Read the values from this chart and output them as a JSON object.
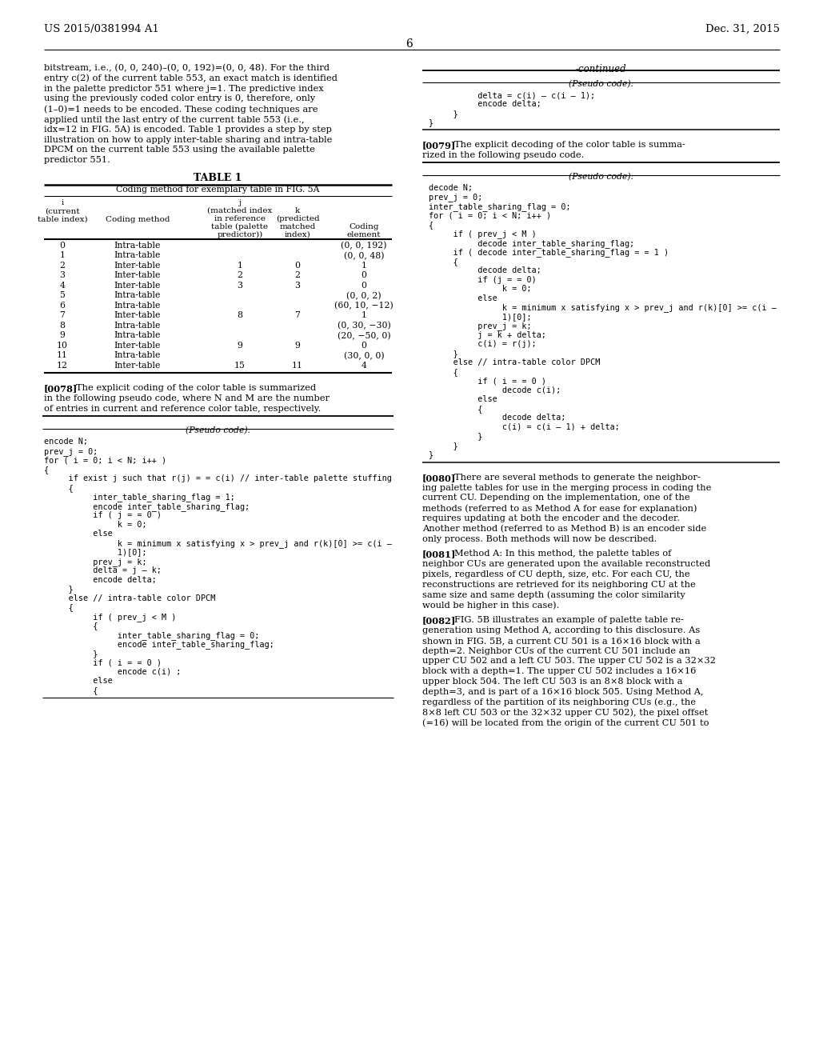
{
  "header_left": "US 2015/0381994 A1",
  "header_right": "Dec. 31, 2015",
  "page_number": "6",
  "left_col": {
    "para1_lines": [
      "bitstream, i.e., (0, 0, 240)–(0, 0, 192)=(0, 0, 48). For the third",
      "entry c(2) of the current table 553, an exact match is identified",
      "in the palette predictor 551 where j=1. The predictive index",
      "using the previously coded color entry is 0, therefore, only",
      "(1–0)=1 needs to be encoded. These coding techniques are",
      "applied until the last entry of the current table 553 (i.e.,",
      "idx=12 in FIG. 5A) is encoded. Table 1 provides a step by step",
      "illustration on how to apply inter-table sharing and intra-table",
      "DPCM on the current table 553 using the available palette",
      "predictor 551."
    ],
    "table_title": "TABLE 1",
    "table_subtitle": "Coding method for exemplary table in FIG. 5A",
    "table_data": [
      [
        "0",
        "Intra-table",
        "",
        "",
        "(0, 0, 192)"
      ],
      [
        "1",
        "Intra-table",
        "",
        "",
        "(0, 0, 48)"
      ],
      [
        "2",
        "Inter-table",
        "1",
        "0",
        "1"
      ],
      [
        "3",
        "Inter-table",
        "2",
        "2",
        "0"
      ],
      [
        "4",
        "Inter-table",
        "3",
        "3",
        "0"
      ],
      [
        "5",
        "Intra-table",
        "",
        "",
        "(0, 0, 2)"
      ],
      [
        "6",
        "Intra-table",
        "",
        "",
        "(60, 10, −12)"
      ],
      [
        "7",
        "Inter-table",
        "8",
        "7",
        "1"
      ],
      [
        "8",
        "Intra-table",
        "",
        "",
        "(0, 30, −30)"
      ],
      [
        "9",
        "Intra-table",
        "",
        "",
        "(20, −50, 0)"
      ],
      [
        "10",
        "Inter-table",
        "9",
        "9",
        "0"
      ],
      [
        "11",
        "Intra-table",
        "",
        "",
        "(30, 0, 0)"
      ],
      [
        "12",
        "Inter-table",
        "15",
        "11",
        "4"
      ]
    ],
    "para2_lines": [
      "[0078]    The explicit coding of the color table is summarized",
      "in the following pseudo code, where N and M are the number",
      "of entries in current and reference color table, respectively."
    ],
    "pseudocode1_header": "(Pseudo code):",
    "pseudocode1_lines": [
      "encode N;",
      "prev_j = 0;",
      "for ( i = 0; i < N; i++ )",
      "{",
      "     if exist j such that r(j) = = c(i) // inter-table palette stuffing",
      "     {",
      "          inter_table_sharing_flag = 1;",
      "          encode inter_table_sharing_flag;",
      "          if ( j = = 0 )",
      "               k = 0;",
      "          else",
      "               k = minimum x satisfying x > prev_j and r(k)[0] >= c(i –",
      "               1)[0];",
      "          prev_j = k;",
      "          delta = j – k;",
      "          encode delta;",
      "     }",
      "     else // intra-table color DPCM",
      "     {",
      "          if ( prev_j < M )",
      "          {",
      "               inter_table_sharing_flag = 0;",
      "               encode inter_table_sharing_flag;",
      "          }",
      "          if ( i = = 0 )",
      "               encode c(i) ;",
      "          else",
      "          {"
    ]
  },
  "right_col": {
    "continued_label": "-continued",
    "pseudocode_cont_lines": [
      "          delta = c(i) – c(i – 1);",
      "          encode delta;",
      "     }",
      "}"
    ],
    "para3_lines": [
      "[0079]    The explicit decoding of the color table is summa-",
      "rized in the following pseudo code."
    ],
    "pseudocode2_header": "(Pseudo code):",
    "pseudocode2_lines": [
      "decode N;",
      "prev_j = 0;",
      "inter_table_sharing_flag = 0;",
      "for ( i = 0; i < N; i++ )",
      "{",
      "     if ( prev_j < M )",
      "          decode inter_table_sharing_flag;",
      "     if ( decode inter_table_sharing_flag = = 1 )",
      "     {",
      "          decode delta;",
      "          if (j = = 0)",
      "               k = 0;",
      "          else",
      "               k = minimum x satisfying x > prev_j and r(k)[0] >= c(i –",
      "               1)[0];",
      "          prev_j = k;",
      "          j = k + delta;",
      "          c(i) = r(j);",
      "     }",
      "     else // intra-table color DPCM",
      "     {",
      "          if ( i = = 0 )",
      "               decode c(i);",
      "          else",
      "          {",
      "               decode delta;",
      "               c(i) = c(i – 1) + delta;",
      "          }",
      "     }",
      "}"
    ],
    "para4_lines": [
      "[0080]    There are several methods to generate the neighbor-",
      "ing palette tables for use in the merging process in coding the",
      "current CU. Depending on the implementation, one of the",
      "methods (referred to as Method A for ease for explanation)",
      "requires updating at both the encoder and the decoder.",
      "Another method (referred to as Method B) is an encoder side",
      "only process. Both methods will now be described."
    ],
    "para5_lines": [
      "[0081]    Method A: In this method, the palette tables of",
      "neighbor CUs are generated upon the available reconstructed",
      "pixels, regardless of CU depth, size, etc. For each CU, the",
      "reconstructions are retrieved for its neighboring CU at the",
      "same size and same depth (assuming the color similarity",
      "would be higher in this case)."
    ],
    "para6_lines": [
      "[0082]    FIG. 5B illustrates an example of palette table re-",
      "generation using Method A, according to this disclosure. As",
      "shown in FIG. 5B, a current CU 501 is a 16×16 block with a",
      "depth=2. Neighbor CUs of the current CU 501 include an",
      "upper CU 502 and a left CU 503. The upper CU 502 is a 32×32",
      "block with a depth=1. The upper CU 502 includes a 16×16",
      "upper block 504. The left CU 503 is an 8×8 block with a",
      "depth=3, and is part of a 16×16 block 505. Using Method A,",
      "regardless of the partition of its neighboring CUs (e.g., the",
      "8×8 left CU 503 or the 32×32 upper CU 502), the pixel offset",
      "(=16) will be located from the origin of the current CU 501 to"
    ]
  }
}
